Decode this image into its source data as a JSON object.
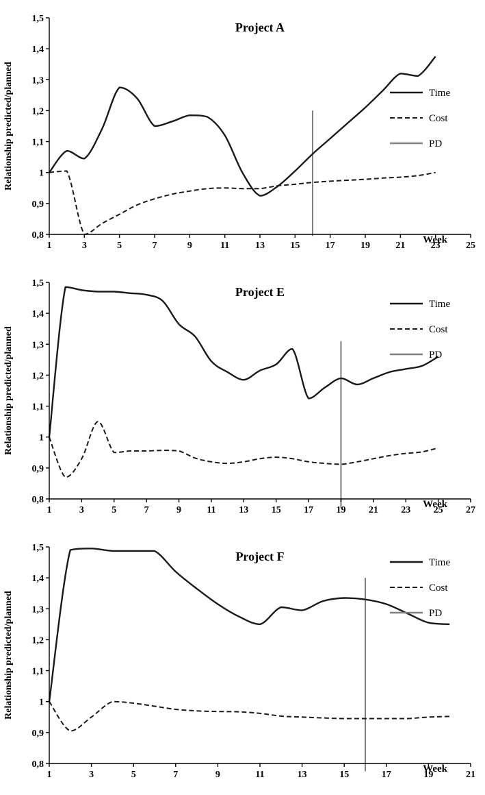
{
  "page": {
    "background": "#ffffff",
    "text_color": "#000000"
  },
  "chart_data": [
    {
      "type": "line",
      "title": "Project A",
      "xlabel": "Week",
      "ylabel": "Relationship predicted/planned",
      "xlim": [
        1,
        25
      ],
      "ylim": [
        0.8,
        1.5
      ],
      "xticks": [
        1,
        3,
        5,
        7,
        9,
        11,
        13,
        15,
        17,
        19,
        21,
        23,
        25
      ],
      "yticks": [
        0.8,
        0.9,
        1.0,
        1.1,
        1.2,
        1.3,
        1.4,
        1.5
      ],
      "ytick_labels": [
        "0,8",
        "0,9",
        "1",
        "1,1",
        "1,2",
        "1,3",
        "1,4",
        "1,5"
      ],
      "grid": false,
      "legend_position": "right-upper",
      "legend": [
        {
          "label": "Time",
          "style": "solid",
          "color": "#1a1a1a"
        },
        {
          "label": "Cost",
          "style": "dashed",
          "color": "#1a1a1a"
        },
        {
          "label": "PD",
          "style": "solid",
          "color": "#808080"
        }
      ],
      "pd_week": 16,
      "pd_top": 1.2,
      "pd_bottom": 0.795,
      "pd_color": "#808080",
      "weeks": [
        1,
        2,
        3,
        4,
        5,
        6,
        7,
        8,
        9,
        10,
        11,
        12,
        13,
        14,
        15,
        16,
        17,
        18,
        19,
        20,
        21,
        22,
        23
      ],
      "series": [
        {
          "name": "Time",
          "style": "solid",
          "color": "#1a1a1a",
          "values": [
            1.0,
            1.07,
            1.045,
            1.14,
            1.275,
            1.24,
            1.15,
            1.165,
            1.185,
            1.18,
            1.12,
            1.0,
            0.925,
            0.955,
            1.005,
            1.06,
            1.11,
            1.16,
            1.21,
            1.265,
            1.32,
            1.312,
            1.375
          ]
        },
        {
          "name": "Cost",
          "style": "dashed",
          "color": "#1a1a1a",
          "values": [
            1.0,
            1.005,
            0.8,
            0.835,
            0.865,
            0.895,
            0.915,
            0.93,
            0.94,
            0.948,
            0.95,
            0.948,
            0.948,
            0.957,
            0.962,
            0.968,
            0.972,
            0.975,
            0.978,
            0.982,
            0.985,
            0.99,
            1.0
          ]
        }
      ],
      "layout": {
        "legend_offset_y": 109,
        "legend_row_gap": 37
      }
    },
    {
      "type": "line",
      "title": "Project E",
      "xlabel": "Week",
      "ylabel": "Relationship predicted/planned",
      "xlim": [
        1,
        27
      ],
      "ylim": [
        0.8,
        1.5
      ],
      "xticks": [
        1,
        3,
        5,
        7,
        9,
        11,
        13,
        15,
        17,
        19,
        21,
        23,
        25,
        27
      ],
      "yticks": [
        0.8,
        0.9,
        1.0,
        1.1,
        1.2,
        1.3,
        1.4,
        1.5
      ],
      "ytick_labels": [
        "0,8",
        "0,9",
        "1",
        "1,1",
        "1,2",
        "1,3",
        "1,4",
        "1,5"
      ],
      "grid": false,
      "legend_position": "right-upper",
      "legend": [
        {
          "label": "Time",
          "style": "solid",
          "color": "#1a1a1a"
        },
        {
          "label": "Cost",
          "style": "dashed",
          "color": "#1a1a1a"
        },
        {
          "label": "PD",
          "style": "solid",
          "color": "#808080"
        }
      ],
      "pd_week": 19,
      "pd_top": 1.31,
      "pd_bottom": 0.77,
      "pd_color": "#808080",
      "weeks": [
        1,
        2,
        3,
        4,
        5,
        6,
        7,
        8,
        9,
        10,
        11,
        12,
        13,
        14,
        15,
        16,
        17,
        18,
        19,
        20,
        21,
        22,
        23,
        24,
        25
      ],
      "series": [
        {
          "name": "Time",
          "style": "solid",
          "color": "#1a1a1a",
          "values": [
            1.0,
            1.485,
            1.475,
            1.47,
            1.47,
            1.465,
            1.46,
            1.44,
            1.365,
            1.325,
            1.245,
            1.21,
            1.185,
            1.215,
            1.235,
            1.285,
            1.125,
            1.16,
            1.19,
            1.17,
            1.19,
            1.21,
            1.22,
            1.23,
            1.26
          ]
        },
        {
          "name": "Cost",
          "style": "dashed",
          "color": "#1a1a1a",
          "values": [
            1.0,
            0.87,
            0.93,
            1.05,
            0.95,
            0.955,
            0.955,
            0.957,
            0.955,
            0.932,
            0.92,
            0.915,
            0.92,
            0.93,
            0.935,
            0.93,
            0.92,
            0.915,
            0.912,
            0.92,
            0.93,
            0.94,
            0.947,
            0.952,
            0.965
          ]
        }
      ],
      "layout": {
        "legend_offset_y": 31,
        "legend_row_gap": 37
      }
    },
    {
      "type": "line",
      "title": "Project F",
      "xlabel": "Week",
      "ylabel": "Relationship predicted/planned",
      "xlim": [
        1,
        21
      ],
      "ylim": [
        0.8,
        1.5
      ],
      "xticks": [
        1,
        3,
        5,
        7,
        9,
        11,
        13,
        15,
        17,
        19,
        21
      ],
      "yticks": [
        0.8,
        0.9,
        1.0,
        1.1,
        1.2,
        1.3,
        1.4,
        1.5
      ],
      "ytick_labels": [
        "0,8",
        "0,9",
        "1",
        "1,1",
        "1,2",
        "1,3",
        "1,4",
        "1,5"
      ],
      "grid": false,
      "legend_position": "right-upper",
      "legend": [
        {
          "label": "Time",
          "style": "solid",
          "color": "#1a1a1a"
        },
        {
          "label": "Cost",
          "style": "dashed",
          "color": "#1a1a1a"
        },
        {
          "label": "PD",
          "style": "solid",
          "color": "#808080"
        }
      ],
      "pd_week": 16,
      "pd_top": 1.4,
      "pd_bottom": 0.775,
      "pd_color": "#808080",
      "weeks": [
        1,
        2,
        3,
        4,
        5,
        6,
        7,
        8,
        9,
        10,
        11,
        12,
        13,
        14,
        15,
        16,
        17,
        18,
        19,
        20
      ],
      "series": [
        {
          "name": "Time",
          "style": "solid",
          "color": "#1a1a1a",
          "values": [
            1.0,
            1.49,
            1.495,
            1.487,
            1.487,
            1.487,
            1.42,
            1.365,
            1.315,
            1.275,
            1.25,
            1.305,
            1.295,
            1.325,
            1.335,
            1.33,
            1.315,
            1.285,
            1.255,
            1.25
          ]
        },
        {
          "name": "Cost",
          "style": "dashed",
          "color": "#1a1a1a",
          "values": [
            1.0,
            0.905,
            0.95,
            1.0,
            0.995,
            0.985,
            0.975,
            0.97,
            0.968,
            0.967,
            0.962,
            0.953,
            0.95,
            0.947,
            0.945,
            0.945,
            0.945,
            0.945,
            0.95,
            0.952
          ]
        }
      ],
      "layout": {
        "legend_offset_y": 22,
        "legend_row_gap": 37
      }
    }
  ]
}
